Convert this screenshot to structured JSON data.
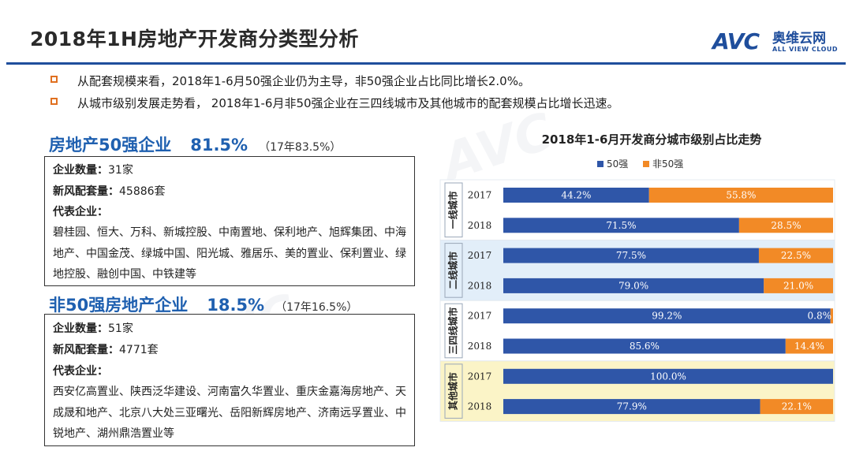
{
  "header": {
    "title": "2018年1H房地产开发商分类型分析",
    "logo_mark": "AVC",
    "logo_cn": "奥维云网",
    "logo_en": "ALL VIEW CLOUD"
  },
  "bullets": [
    "从配套规模来看，2018年1-6月50强企业仍为主导，非50强企业占比同比增长2.0%。",
    "从城市级别发展走势看， 2018年1-6月非50强企业在三四线城市及其他城市的配套规模占比增长迅速。"
  ],
  "section1": {
    "name": "房地产50强企业",
    "pct": "81.5%",
    "prev": "（17年83.5%）",
    "count_label": "企业数量：",
    "count_value": "31家",
    "units_label": "新风配套量：",
    "units_value": "45886套",
    "rep_label": "代表企业：",
    "rep_list": "碧桂园、恒大、万科、新城控股、中南置地、保利地产、旭辉集团、中海地产、中国金茂、绿城中国、阳光城、雅居乐、美的置业、保利置业、绿地控股、融创中国、中铁建等"
  },
  "section2": {
    "name": "非50强房地产企业",
    "pct": "18.5%",
    "prev": "（17年16.5%）",
    "count_label": "企业数量：",
    "count_value": "51家",
    "units_label": "新风配套量：",
    "units_value": "4771套",
    "rep_label": "代表企业：",
    "rep_list": "西安亿高置业、陕西泛华建设、河南富久华置业、重庆金嘉海房地产、天成晟和地产、北京八大处三亚曙光、岳阳新辉房地产、济南远孚置业、中锐地产、湖州鼎浩置业等"
  },
  "chart_data": {
    "type": "bar",
    "orientation": "horizontal",
    "stacked": "percent",
    "title": "2018年1-6月开发商分城市级别占比走势",
    "legend_position": "top",
    "groups": [
      "一线城市",
      "二线城市",
      "三四线城市",
      "其他城市"
    ],
    "categories": [
      "2017",
      "2018",
      "2017",
      "2018",
      "2017",
      "2018",
      "2017",
      "2018"
    ],
    "group_colors": [
      "#ffffff",
      "#e2eef9",
      "#ffffff",
      "#fbf4c7"
    ],
    "series": [
      {
        "name": "50强",
        "color": "#2f56a8",
        "values": [
          44.2,
          71.5,
          77.5,
          79.0,
          99.2,
          85.6,
          100.0,
          77.9
        ],
        "labels": [
          "44.2%",
          "71.5%",
          "77.5%",
          "79.0%",
          "99.2%",
          "85.6%",
          "100.0%",
          "77.9%"
        ]
      },
      {
        "name": "非50强",
        "color": "#f28a26",
        "values": [
          55.8,
          28.5,
          22.5,
          21.0,
          0.8,
          14.4,
          0.0,
          22.1
        ],
        "labels": [
          "55.8%",
          "28.5%",
          "22.5%",
          "21.0%",
          "0.8%",
          "14.4%",
          "",
          "22.1%"
        ]
      }
    ],
    "xlim": [
      0,
      100
    ]
  }
}
